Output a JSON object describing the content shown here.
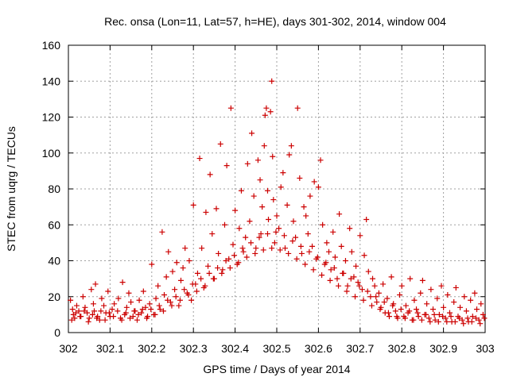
{
  "chart_data": {
    "type": "scatter",
    "title": "Rec. onsa (Lon=11, Lat=57, h=HE), days 301-302, 2014, window 004",
    "xlabel": "GPS time / Days of year 2014",
    "ylabel": "STEC from uqrg / TECUs",
    "xlim": [
      302,
      303
    ],
    "ylim": [
      0,
      160
    ],
    "xticks": [
      302,
      302.1,
      302.2,
      302.3,
      302.4,
      302.5,
      302.6,
      302.7,
      302.8,
      302.9,
      303
    ],
    "xtick_labels": [
      "302",
      "302.1",
      "302.2",
      "302.3",
      "302.4",
      "302.5",
      "302.6",
      "302.7",
      "302.8",
      "302.9",
      "303"
    ],
    "yticks": [
      0,
      20,
      40,
      60,
      80,
      100,
      120,
      140,
      160
    ],
    "ytick_labels": [
      "0",
      "20",
      "40",
      "60",
      "80",
      "100",
      "120",
      "140",
      "160"
    ],
    "grid": true,
    "marker": "plus",
    "color": "#cc0000",
    "points": [
      [
        302.005,
        18
      ],
      [
        302.01,
        13
      ],
      [
        302.012,
        10
      ],
      [
        302.015,
        8
      ],
      [
        302.02,
        15
      ],
      [
        302.025,
        12
      ],
      [
        302.03,
        9
      ],
      [
        302.035,
        20
      ],
      [
        302.04,
        14
      ],
      [
        302.045,
        11
      ],
      [
        302.05,
        8
      ],
      [
        302.055,
        24
      ],
      [
        302.06,
        16
      ],
      [
        302.062,
        12
      ],
      [
        302.065,
        27
      ],
      [
        302.07,
        9
      ],
      [
        302.075,
        7
      ],
      [
        302.08,
        19
      ],
      [
        302.085,
        15
      ],
      [
        302.09,
        11
      ],
      [
        302.095,
        23
      ],
      [
        302.1,
        9
      ],
      [
        302.105,
        13
      ],
      [
        302.11,
        16
      ],
      [
        302.12,
        19
      ],
      [
        302.125,
        8
      ],
      [
        302.13,
        28
      ],
      [
        302.135,
        10
      ],
      [
        302.14,
        14
      ],
      [
        302.145,
        22
      ],
      [
        302.15,
        17
      ],
      [
        302.155,
        9
      ],
      [
        302.16,
        12
      ],
      [
        302.165,
        7
      ],
      [
        302.17,
        18
      ],
      [
        302.175,
        11
      ],
      [
        302.18,
        23
      ],
      [
        302.185,
        14
      ],
      [
        302.19,
        9
      ],
      [
        302.195,
        16
      ],
      [
        302.2,
        38
      ],
      [
        302.205,
        10
      ],
      [
        302.21,
        19
      ],
      [
        302.215,
        26
      ],
      [
        302.22,
        13
      ],
      [
        302.225,
        56
      ],
      [
        302.23,
        21
      ],
      [
        302.235,
        31
      ],
      [
        302.24,
        45
      ],
      [
        302.245,
        17
      ],
      [
        302.25,
        34
      ],
      [
        302.255,
        24
      ],
      [
        302.26,
        39
      ],
      [
        302.265,
        15
      ],
      [
        302.27,
        29
      ],
      [
        302.275,
        36
      ],
      [
        302.28,
        47
      ],
      [
        302.285,
        22
      ],
      [
        302.29,
        40
      ],
      [
        302.295,
        18
      ],
      [
        302.3,
        71
      ],
      [
        302.305,
        27
      ],
      [
        302.31,
        33
      ],
      [
        302.315,
        97
      ],
      [
        302.32,
        47
      ],
      [
        302.325,
        25
      ],
      [
        302.33,
        67
      ],
      [
        302.335,
        37
      ],
      [
        302.34,
        88
      ],
      [
        302.345,
        55
      ],
      [
        302.35,
        30
      ],
      [
        302.355,
        69
      ],
      [
        302.36,
        44
      ],
      [
        302.365,
        105
      ],
      [
        302.37,
        35
      ],
      [
        302.375,
        60
      ],
      [
        302.38,
        93
      ],
      [
        302.385,
        41
      ],
      [
        302.39,
        125
      ],
      [
        302.395,
        49
      ],
      [
        302.4,
        68
      ],
      [
        302.405,
        38
      ],
      [
        302.41,
        58
      ],
      [
        302.415,
        79
      ],
      [
        302.42,
        45
      ],
      [
        302.425,
        53
      ],
      [
        302.43,
        94
      ],
      [
        302.435,
        62
      ],
      [
        302.44,
        111
      ],
      [
        302.445,
        76
      ],
      [
        302.45,
        47
      ],
      [
        302.455,
        96
      ],
      [
        302.46,
        85
      ],
      [
        302.462,
        55
      ],
      [
        302.465,
        70
      ],
      [
        302.47,
        104
      ],
      [
        302.472,
        121
      ],
      [
        302.475,
        125
      ],
      [
        302.478,
        79
      ],
      [
        302.48,
        63
      ],
      [
        302.485,
        123
      ],
      [
        302.488,
        140
      ],
      [
        302.49,
        98
      ],
      [
        302.492,
        74
      ],
      [
        302.495,
        50
      ],
      [
        302.5,
        65
      ],
      [
        302.505,
        58
      ],
      [
        302.51,
        81
      ],
      [
        302.515,
        89
      ],
      [
        302.52,
        47
      ],
      [
        302.525,
        71
      ],
      [
        302.53,
        99
      ],
      [
        302.535,
        104
      ],
      [
        302.54,
        62
      ],
      [
        302.545,
        53
      ],
      [
        302.55,
        125
      ],
      [
        302.555,
        86
      ],
      [
        302.56,
        44
      ],
      [
        302.565,
        70
      ],
      [
        302.57,
        65
      ],
      [
        302.575,
        55
      ],
      [
        302.58,
        76
      ],
      [
        302.585,
        48
      ],
      [
        302.59,
        84
      ],
      [
        302.595,
        41
      ],
      [
        302.6,
        81
      ],
      [
        302.605,
        96
      ],
      [
        302.61,
        60
      ],
      [
        302.615,
        38
      ],
      [
        302.62,
        50
      ],
      [
        302.625,
        45
      ],
      [
        302.63,
        35
      ],
      [
        302.635,
        56
      ],
      [
        302.64,
        42
      ],
      [
        302.645,
        30
      ],
      [
        302.65,
        66
      ],
      [
        302.655,
        48
      ],
      [
        302.66,
        33
      ],
      [
        302.665,
        40
      ],
      [
        302.67,
        26
      ],
      [
        302.675,
        58
      ],
      [
        302.68,
        45
      ],
      [
        302.685,
        31
      ],
      [
        302.69,
        37
      ],
      [
        302.695,
        28
      ],
      [
        302.7,
        54
      ],
      [
        302.705,
        24
      ],
      [
        302.71,
        43
      ],
      [
        302.715,
        63
      ],
      [
        302.72,
        34
      ],
      [
        302.725,
        20
      ],
      [
        302.73,
        30
      ],
      [
        302.735,
        26
      ],
      [
        302.74,
        17
      ],
      [
        302.745,
        22
      ],
      [
        302.75,
        14
      ],
      [
        302.755,
        27
      ],
      [
        302.76,
        11
      ],
      [
        302.765,
        19
      ],
      [
        302.77,
        9
      ],
      [
        302.775,
        31
      ],
      [
        302.78,
        16
      ],
      [
        302.785,
        12
      ],
      [
        302.79,
        8
      ],
      [
        302.795,
        21
      ],
      [
        302.8,
        26
      ],
      [
        302.805,
        9
      ],
      [
        302.81,
        15
      ],
      [
        302.815,
        11
      ],
      [
        302.82,
        30
      ],
      [
        302.825,
        7
      ],
      [
        302.83,
        18
      ],
      [
        302.835,
        13
      ],
      [
        302.84,
        9
      ],
      [
        302.845,
        22
      ],
      [
        302.85,
        29
      ],
      [
        302.855,
        10
      ],
      [
        302.86,
        16
      ],
      [
        302.865,
        8
      ],
      [
        302.87,
        24
      ],
      [
        302.875,
        13
      ],
      [
        302.88,
        7
      ],
      [
        302.885,
        19
      ],
      [
        302.89,
        10
      ],
      [
        302.895,
        26
      ],
      [
        302.9,
        14
      ],
      [
        302.905,
        8
      ],
      [
        302.91,
        21
      ],
      [
        302.915,
        11
      ],
      [
        302.92,
        6
      ],
      [
        302.925,
        17
      ],
      [
        302.93,
        25
      ],
      [
        302.935,
        9
      ],
      [
        302.94,
        14
      ],
      [
        302.945,
        7
      ],
      [
        302.95,
        20
      ],
      [
        302.955,
        12
      ],
      [
        302.96,
        6
      ],
      [
        302.965,
        18
      ],
      [
        302.97,
        9
      ],
      [
        302.975,
        22
      ],
      [
        302.98,
        13
      ],
      [
        302.985,
        7
      ],
      [
        302.99,
        16
      ],
      [
        302.995,
        10
      ],
      [
        302.008,
        7
      ],
      [
        302.028,
        9
      ],
      [
        302.048,
        6
      ],
      [
        302.068,
        8
      ],
      [
        302.088,
        7
      ],
      [
        302.108,
        9
      ],
      [
        302.128,
        7
      ],
      [
        302.148,
        8
      ],
      [
        302.168,
        10
      ],
      [
        302.188,
        8
      ],
      [
        302.208,
        10
      ],
      [
        302.228,
        12
      ],
      [
        302.248,
        15
      ],
      [
        302.268,
        18
      ],
      [
        302.288,
        21
      ],
      [
        302.308,
        23
      ],
      [
        302.328,
        26
      ],
      [
        302.348,
        30
      ],
      [
        302.368,
        33
      ],
      [
        302.388,
        36
      ],
      [
        302.408,
        39
      ],
      [
        302.428,
        42
      ],
      [
        302.448,
        44
      ],
      [
        302.468,
        46
      ],
      [
        302.488,
        47
      ],
      [
        302.508,
        46
      ],
      [
        302.528,
        44
      ],
      [
        302.548,
        41
      ],
      [
        302.568,
        38
      ],
      [
        302.588,
        35
      ],
      [
        302.608,
        32
      ],
      [
        302.628,
        29
      ],
      [
        302.648,
        26
      ],
      [
        302.668,
        23
      ],
      [
        302.688,
        20
      ],
      [
        302.708,
        18
      ],
      [
        302.728,
        15
      ],
      [
        302.748,
        13
      ],
      [
        302.768,
        11
      ],
      [
        302.788,
        9
      ],
      [
        302.808,
        8
      ],
      [
        302.828,
        7
      ],
      [
        302.848,
        7
      ],
      [
        302.868,
        6
      ],
      [
        302.888,
        6
      ],
      [
        302.908,
        6
      ],
      [
        302.928,
        6
      ],
      [
        302.948,
        5
      ],
      [
        302.968,
        6
      ],
      [
        302.988,
        5
      ],
      [
        302.018,
        11
      ],
      [
        302.038,
        12
      ],
      [
        302.058,
        10
      ],
      [
        302.078,
        12
      ],
      [
        302.098,
        11
      ],
      [
        302.118,
        12
      ],
      [
        302.138,
        11
      ],
      [
        302.158,
        12
      ],
      [
        302.178,
        13
      ],
      [
        302.198,
        13
      ],
      [
        302.218,
        15
      ],
      [
        302.238,
        18
      ],
      [
        302.258,
        20
      ],
      [
        302.278,
        24
      ],
      [
        302.298,
        27
      ],
      [
        302.318,
        30
      ],
      [
        302.338,
        33
      ],
      [
        302.358,
        36
      ],
      [
        302.378,
        40
      ],
      [
        302.398,
        43
      ],
      [
        302.418,
        47
      ],
      [
        302.438,
        50
      ],
      [
        302.458,
        53
      ],
      [
        302.478,
        55
      ],
      [
        302.498,
        56
      ],
      [
        302.518,
        54
      ],
      [
        302.538,
        51
      ],
      [
        302.558,
        48
      ],
      [
        302.578,
        45
      ],
      [
        302.598,
        42
      ],
      [
        302.618,
        39
      ],
      [
        302.638,
        36
      ],
      [
        302.658,
        33
      ],
      [
        302.678,
        30
      ],
      [
        302.698,
        26
      ],
      [
        302.718,
        23
      ],
      [
        302.738,
        20
      ],
      [
        302.758,
        17
      ],
      [
        302.778,
        15
      ],
      [
        302.798,
        13
      ],
      [
        302.818,
        12
      ],
      [
        302.838,
        11
      ],
      [
        302.858,
        10
      ],
      [
        302.878,
        10
      ],
      [
        302.898,
        9
      ],
      [
        302.918,
        9
      ],
      [
        302.938,
        8
      ],
      [
        302.958,
        8
      ],
      [
        302.978,
        8
      ],
      [
        302.998,
        8
      ]
    ]
  }
}
